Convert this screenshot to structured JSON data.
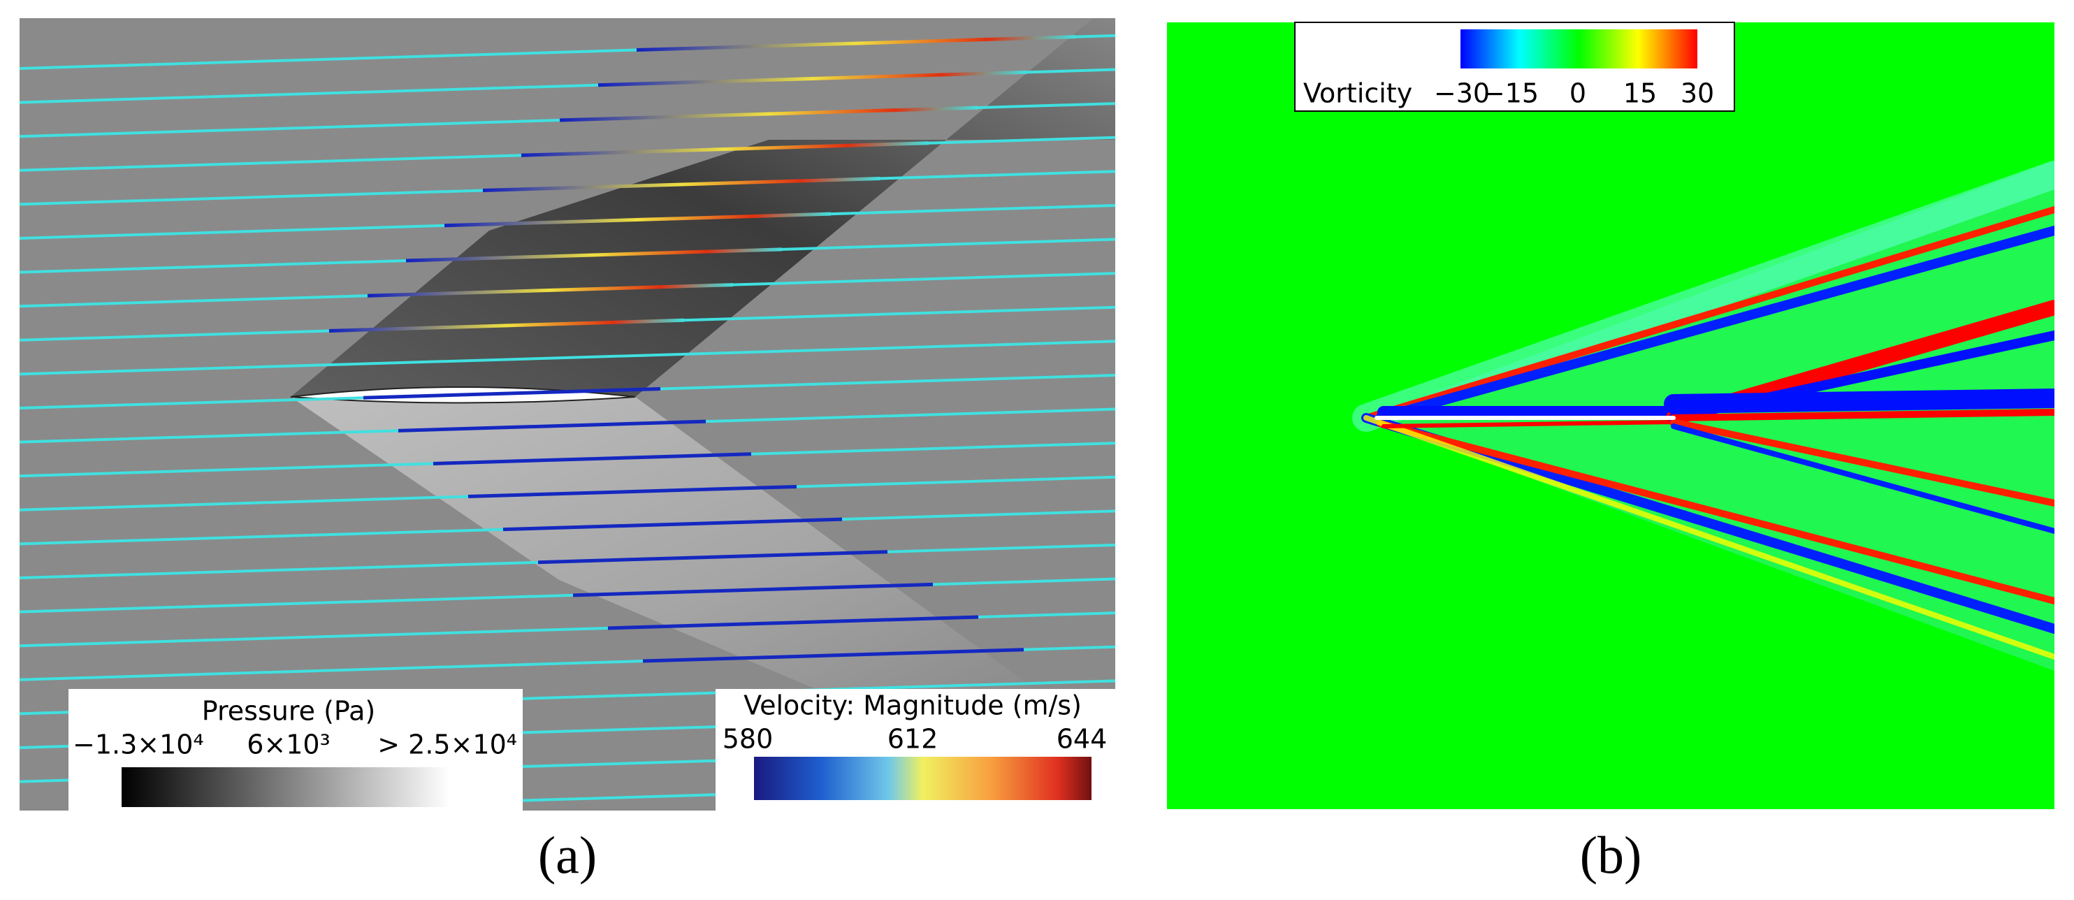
{
  "panels": [
    {
      "label": "(a)",
      "legends": [
        {
          "title": "Pressure (Pa)",
          "ticks": [
            "−1.3×10⁴",
            "6×10³",
            "> 2.5×10⁴"
          ]
        },
        {
          "title": "Velocity: Magnitude (m/s)",
          "ticks": [
            "580",
            "612",
            "644"
          ]
        }
      ]
    },
    {
      "label": "(b)",
      "legends": [
        {
          "title": "Vorticity",
          "ticks": [
            "−30",
            "−15",
            "0",
            "15",
            "30"
          ]
        }
      ]
    }
  ]
}
